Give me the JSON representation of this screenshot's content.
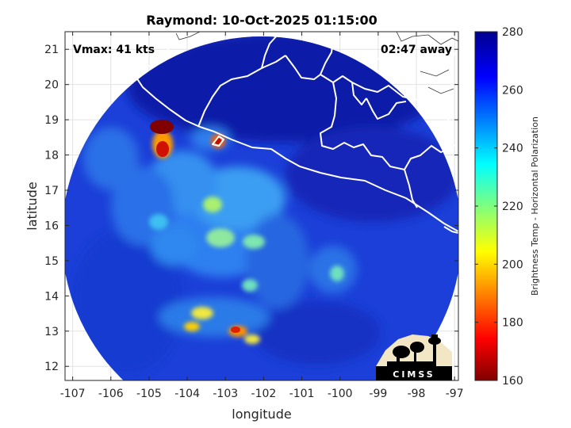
{
  "title": "Raymond: 10-Oct-2025 01:15:00",
  "vmax_text": "Vmax: 41 kts",
  "away_text": "02:47 away",
  "xlabel": "longitude",
  "ylabel": "latitude",
  "colorbar_label": "Brightness Temp - Horizontal Polarization",
  "logo_text": "CIMSS",
  "xticks": [
    "-107",
    "-106",
    "-105",
    "-104",
    "-103",
    "-102",
    "-101",
    "-100",
    "-99",
    "-98",
    "-97"
  ],
  "yticks": [
    "12",
    "13",
    "14",
    "15",
    "16",
    "17",
    "18",
    "19",
    "20",
    "21"
  ],
  "cbticks": [
    "160",
    "180",
    "200",
    "220",
    "240",
    "260",
    "280"
  ],
  "map": {
    "lon_range": [
      -107.2,
      -96.9
    ],
    "lat_range": [
      11.6,
      21.5
    ],
    "swath_center": [
      -101.7,
      16.4
    ],
    "swath_radius_deg": 5.4,
    "colorbar_range": [
      160,
      280
    ],
    "colormap": "jet"
  }
}
